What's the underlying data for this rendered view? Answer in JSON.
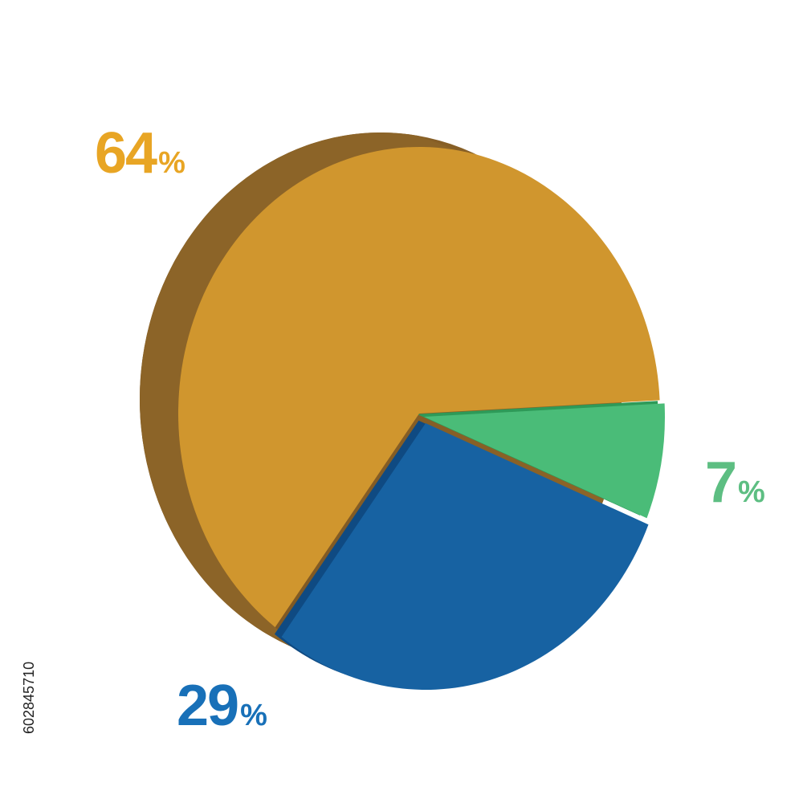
{
  "chart_data": {
    "type": "pie",
    "style": "3d-tilted",
    "categories": [
      "",
      "",
      ""
    ],
    "values": [
      64,
      29,
      7
    ],
    "data_labels": [
      {
        "value": "64",
        "unit": "%"
      },
      {
        "value": "29",
        "unit": "%"
      },
      {
        "value": "7",
        "unit": "%"
      }
    ],
    "title": "",
    "legend": "none"
  },
  "colors": {
    "slice_top": [
      "#D0962E",
      "#1762A2",
      "#4ABC78"
    ],
    "slice_side": [
      "#8C6428",
      "#0F4A82",
      "#2E9A58"
    ],
    "label": [
      "#E8A524",
      "#1870B8",
      "#5DBE82"
    ]
  },
  "stock_id": "602845710"
}
